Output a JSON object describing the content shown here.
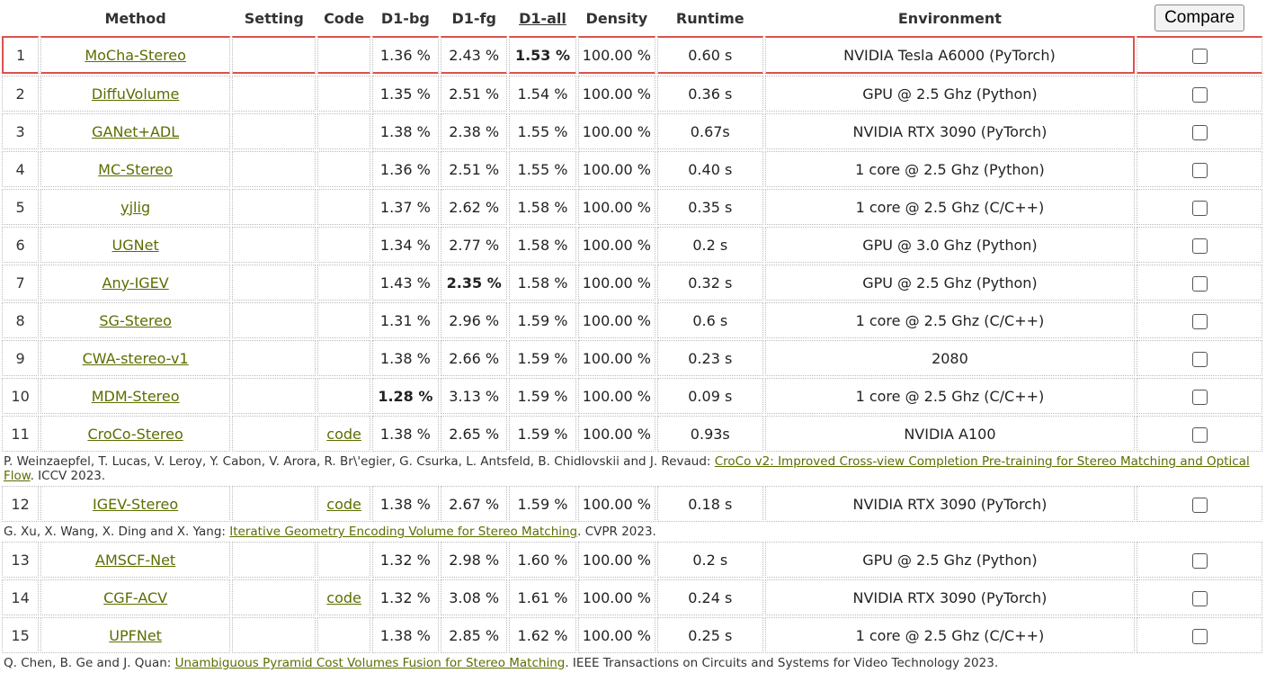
{
  "headers": {
    "method": "Method",
    "setting": "Setting",
    "code": "Code",
    "d1bg": "D1-bg",
    "d1fg": "D1-fg",
    "d1all": "D1-all",
    "density": "Density",
    "runtime": "Runtime",
    "environment": "Environment",
    "compare_button": "Compare"
  },
  "rows": [
    {
      "rank": "1",
      "method": "MoCha-Stereo",
      "code": "",
      "d1bg": "1.36 %",
      "d1fg": "2.43 %",
      "d1all": "1.53 %",
      "density": "100.00 %",
      "runtime": "0.60 s",
      "env": "NVIDIA Tesla A6000 (PyTorch)"
    },
    {
      "rank": "2",
      "method": "DiffuVolume",
      "code": "",
      "d1bg": "1.35 %",
      "d1fg": "2.51 %",
      "d1all": "1.54 %",
      "density": "100.00 %",
      "runtime": "0.36 s",
      "env": "GPU @ 2.5 Ghz (Python)"
    },
    {
      "rank": "3",
      "method": "GANet+ADL",
      "code": "",
      "d1bg": "1.38 %",
      "d1fg": "2.38 %",
      "d1all": "1.55 %",
      "density": "100.00 %",
      "runtime": "0.67s",
      "env": "NVIDIA RTX 3090 (PyTorch)"
    },
    {
      "rank": "4",
      "method": "MC-Stereo",
      "code": "",
      "d1bg": "1.36 %",
      "d1fg": "2.51 %",
      "d1all": "1.55 %",
      "density": "100.00 %",
      "runtime": "0.40 s",
      "env": "1 core @ 2.5 Ghz (Python)"
    },
    {
      "rank": "5",
      "method": "yjlig",
      "code": "",
      "d1bg": "1.37 %",
      "d1fg": "2.62 %",
      "d1all": "1.58 %",
      "density": "100.00 %",
      "runtime": "0.35 s",
      "env": "1 core @ 2.5 Ghz (C/C++)"
    },
    {
      "rank": "6",
      "method": "UGNet",
      "code": "",
      "d1bg": "1.34 %",
      "d1fg": "2.77 %",
      "d1all": "1.58 %",
      "density": "100.00 %",
      "runtime": "0.2 s",
      "env": "GPU @ 3.0 Ghz (Python)"
    },
    {
      "rank": "7",
      "method": "Any-IGEV",
      "code": "",
      "d1bg": "1.43 %",
      "d1fg": "2.35 %",
      "d1all": "1.58 %",
      "density": "100.00 %",
      "runtime": "0.32 s",
      "env": "GPU @ 2.5 Ghz (Python)"
    },
    {
      "rank": "8",
      "method": "SG-Stereo",
      "code": "",
      "d1bg": "1.31 %",
      "d1fg": "2.96 %",
      "d1all": "1.59 %",
      "density": "100.00 %",
      "runtime": "0.6 s",
      "env": "1 core @ 2.5 Ghz (C/C++)"
    },
    {
      "rank": "9",
      "method": "CWA-stereo-v1",
      "code": "",
      "d1bg": "1.38 %",
      "d1fg": "2.66 %",
      "d1all": "1.59 %",
      "density": "100.00 %",
      "runtime": "0.23 s",
      "env": "2080"
    },
    {
      "rank": "10",
      "method": "MDM-Stereo",
      "code": "",
      "d1bg": "1.28 %",
      "d1fg": "3.13 %",
      "d1all": "1.59 %",
      "density": "100.00 %",
      "runtime": "0.09 s",
      "env": "1 core @ 2.5 Ghz (C/C++)"
    },
    {
      "rank": "11",
      "method": "CroCo-Stereo",
      "code": "code",
      "d1bg": "1.38 %",
      "d1fg": "2.65 %",
      "d1all": "1.59 %",
      "density": "100.00 %",
      "runtime": "0.93s",
      "env": "NVIDIA A100"
    },
    {
      "rank": "12",
      "method": "IGEV-Stereo",
      "code": "code",
      "d1bg": "1.38 %",
      "d1fg": "2.67 %",
      "d1all": "1.59 %",
      "density": "100.00 %",
      "runtime": "0.18 s",
      "env": "NVIDIA RTX 3090 (PyTorch)"
    },
    {
      "rank": "13",
      "method": "AMSCF-Net",
      "code": "",
      "d1bg": "1.32 %",
      "d1fg": "2.98 %",
      "d1all": "1.60 %",
      "density": "100.00 %",
      "runtime": "0.2 s",
      "env": "GPU @ 2.5 Ghz (Python)"
    },
    {
      "rank": "14",
      "method": "CGF-ACV",
      "code": "code",
      "d1bg": "1.32 %",
      "d1fg": "3.08 %",
      "d1all": "1.61 %",
      "density": "100.00 %",
      "runtime": "0.24 s",
      "env": "NVIDIA RTX 3090 (PyTorch)"
    },
    {
      "rank": "15",
      "method": "UPFNet",
      "code": "",
      "d1bg": "1.38 %",
      "d1fg": "2.85 %",
      "d1all": "1.62 %",
      "density": "100.00 %",
      "runtime": "0.25 s",
      "env": "1 core @ 2.5 Ghz (C/C++)"
    }
  ],
  "citations": {
    "c11": {
      "authors": "P. Weinzaepfel, T. Lucas, V. Leroy, Y. Cabon, V. Arora, R. Br\\'egier, G. Csurka, L. Antsfeld, B. Chidlovskii and J. Revaud: ",
      "title": "CroCo v2: Improved Cross-view Completion Pre-training for Stereo Matching and Optical Flow",
      "venue": ". ICCV 2023."
    },
    "c12": {
      "authors": "G. Xu, X. Wang, X. Ding and X. Yang: ",
      "title": "Iterative Geometry Encoding Volume for Stereo Matching",
      "venue": ". CVPR 2023."
    },
    "c15": {
      "authors": "Q. Chen, B. Ge and J. Quan: ",
      "title": "Unambiguous Pyramid Cost Volumes Fusion for Stereo Matching",
      "venue": ". IEEE Transactions on Circuits and Systems for Video Technology 2023."
    }
  }
}
